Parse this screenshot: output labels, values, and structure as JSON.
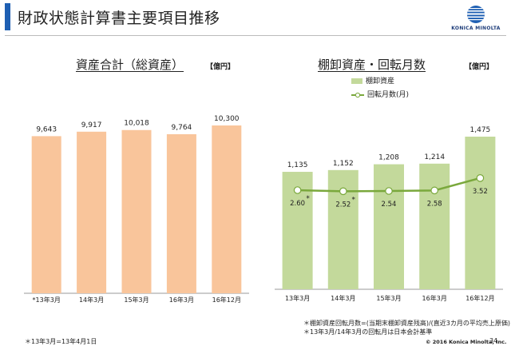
{
  "header": {
    "title": "財政状態計算書主要項目推移",
    "logo_text": "KONICA MINOLTA",
    "accent_color": "#1e5fb3"
  },
  "left_chart": {
    "title": "資産合計（総資産）",
    "unit": "【億円】",
    "first_category_marker": "*",
    "footnote": "＊13年3月=13年4月1日"
  },
  "right_chart": {
    "title": "棚卸資産・回転月数",
    "unit": "【億円】",
    "legend_bar": "棚卸資産",
    "legend_line": "回転月数(月)",
    "notes": [
      "＊棚卸資産回転月数=(当期末棚卸資産残高)/(直近3カ月の平均売上原価)",
      "＊13年3月/14年3月の回転月は日本会計基準"
    ],
    "line_markers": [
      "*",
      "*",
      "",
      "",
      ""
    ]
  },
  "footer": {
    "copyright": "© 2016 Konica Minolta, Inc.",
    "page_number": "34"
  },
  "chart_data": [
    {
      "type": "bar",
      "title": "資産合計（総資産）",
      "categories": [
        "13年3月",
        "14年3月",
        "15年3月",
        "16年3月",
        "16年12月"
      ],
      "values": [
        9643,
        9917,
        10018,
        9764,
        10300
      ],
      "value_labels": [
        "9,643",
        "9,917",
        "10,018",
        "9,764",
        "10,300"
      ],
      "bar_color": "#f9c59b",
      "grid": false
    },
    {
      "type": "bar",
      "title": "棚卸資産・回転月数",
      "categories": [
        "13年3月",
        "14年3月",
        "15年3月",
        "16年3月",
        "16年12月"
      ],
      "series": [
        {
          "name": "棚卸資産",
          "type": "bar",
          "values": [
            1135,
            1152,
            1208,
            1214,
            1475
          ],
          "value_labels": [
            "1,135",
            "1,152",
            "1,208",
            "1,214",
            "1,475"
          ],
          "color": "#c3d99b"
        },
        {
          "name": "回転月数(月)",
          "type": "line",
          "values": [
            2.6,
            2.52,
            2.54,
            2.58,
            3.52
          ],
          "value_labels": [
            "2.60",
            "2.52",
            "2.54",
            "2.58",
            "3.52"
          ],
          "color": "#7aa83c"
        }
      ],
      "grid": false
    }
  ]
}
